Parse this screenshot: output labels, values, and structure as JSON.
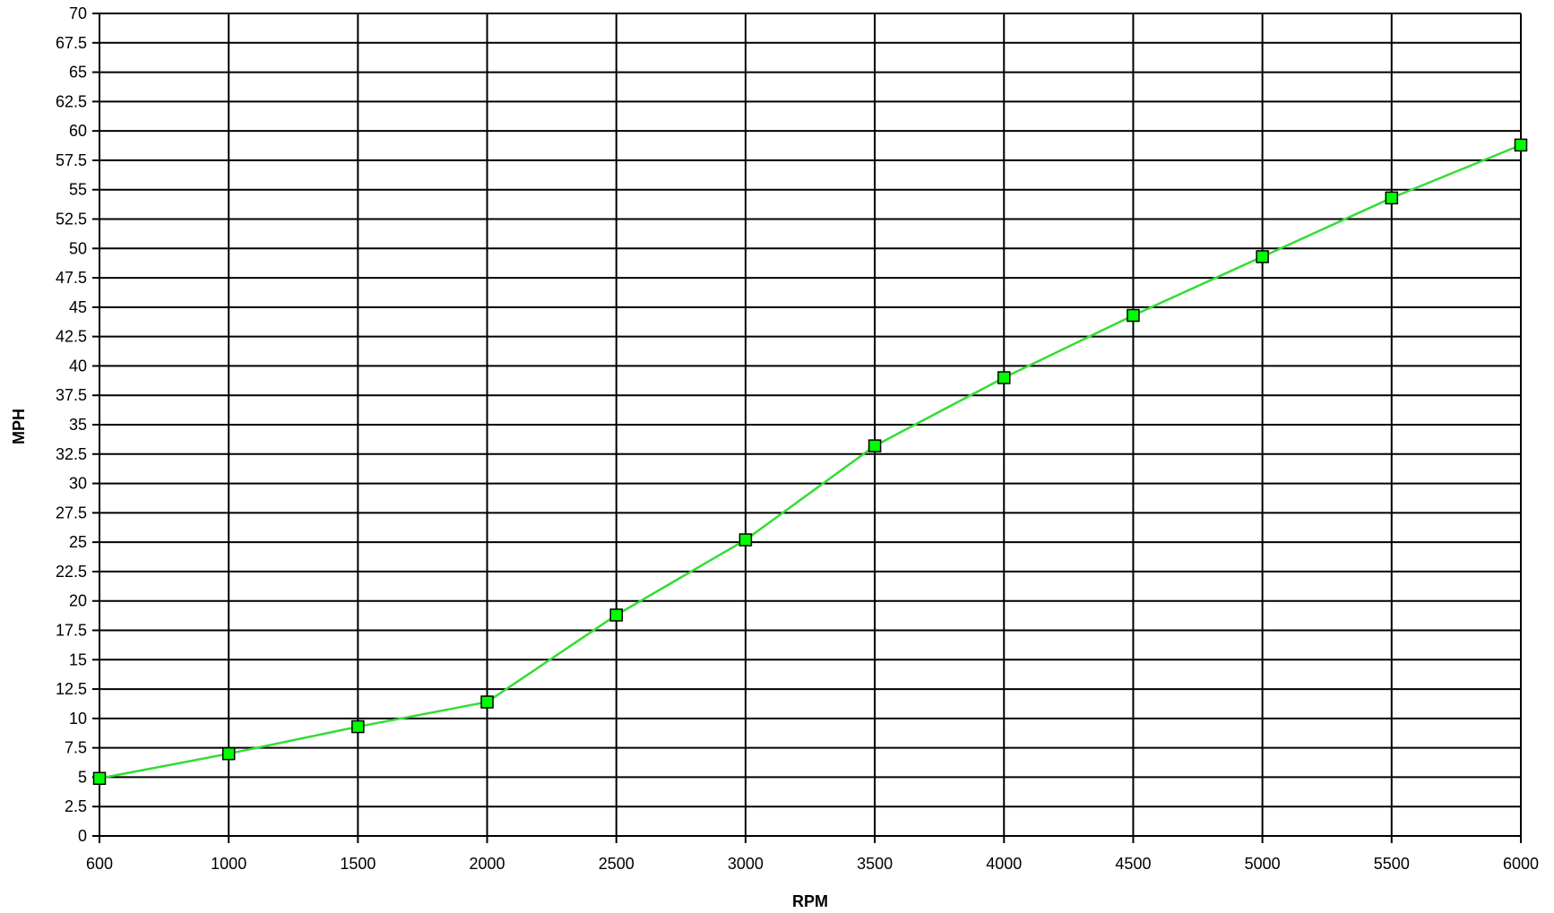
{
  "chart_data": {
    "type": "line",
    "title": "",
    "xlabel": "RPM",
    "ylabel": "MPH",
    "categories": [
      "600",
      "1000",
      "1500",
      "2000",
      "2500",
      "3000",
      "3500",
      "4000",
      "4500",
      "5000",
      "5500",
      "6000"
    ],
    "series": [
      {
        "values": [
          4.9,
          7.0,
          9.3,
          11.4,
          18.8,
          25.2,
          33.2,
          39.0,
          44.3,
          49.3,
          54.3,
          58.8
        ],
        "color": "#00ff00",
        "line_color": "#33dd33",
        "marker": "square"
      }
    ],
    "ylim": [
      0,
      70
    ],
    "yticks": [
      "0",
      "2.5",
      "5",
      "7.5",
      "10",
      "12.5",
      "15",
      "17.5",
      "20",
      "22.5",
      "25",
      "27.5",
      "30",
      "32.5",
      "35",
      "37.5",
      "40",
      "42.5",
      "45",
      "47.5",
      "50",
      "52.5",
      "55",
      "57.5",
      "60",
      "62.5",
      "65",
      "67.5",
      "70"
    ],
    "grid": true,
    "legend": "none"
  }
}
